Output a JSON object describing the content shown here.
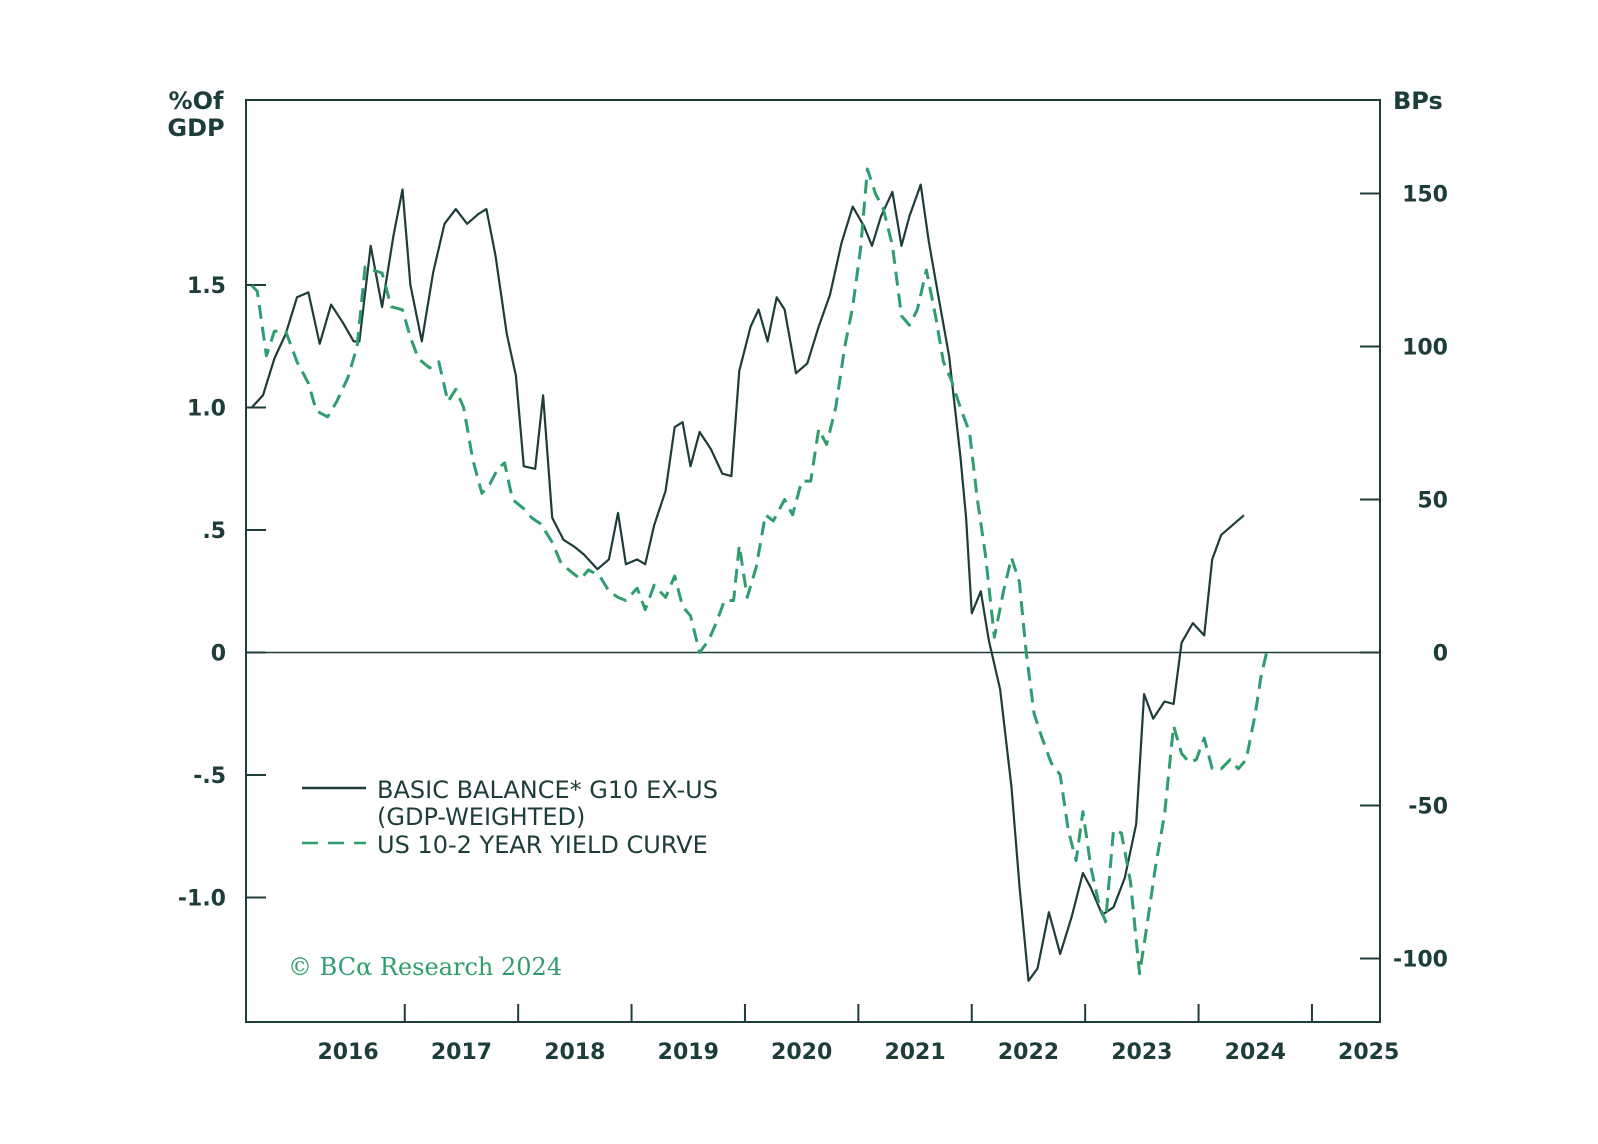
{
  "chart_data": {
    "type": "line",
    "left_axis": {
      "unit_line1": "%Of",
      "unit_line2": "GDP",
      "range": [
        -1.5,
        2.25
      ],
      "ticks": [
        {
          "value": 1.5,
          "label": "1.5"
        },
        {
          "value": 1.0,
          "label": "1.0"
        },
        {
          "value": 0.5,
          "label": ".5"
        },
        {
          "value": 0,
          "label": "0"
        },
        {
          "value": -0.5,
          "label": "-.5"
        },
        {
          "value": -1.0,
          "label": "-1.0"
        }
      ]
    },
    "right_axis": {
      "unit": "BPs",
      "range": [
        -120,
        180
      ],
      "ticks": [
        {
          "value": 150,
          "label": "150"
        },
        {
          "value": 100,
          "label": "100"
        },
        {
          "value": 50,
          "label": "50"
        },
        {
          "value": 0,
          "label": "0"
        },
        {
          "value": -50,
          "label": "-50"
        },
        {
          "value": -100,
          "label": "-100"
        }
      ]
    },
    "x_axis": {
      "range": [
        2015.6,
        2025.6
      ],
      "year_labels": [
        "2016",
        "2017",
        "2018",
        "2019",
        "2020",
        "2021",
        "2022",
        "2023",
        "2024",
        "2025"
      ]
    },
    "zero_line": true,
    "grid": false,
    "legend_placement": "bottom-left",
    "series": [
      {
        "name": "BASIC BALANCE* G10 EX-US",
        "name_line2": "(GDP-WEIGHTED)",
        "axis": "left",
        "color": "#1d3d3a",
        "style": "solid",
        "points": [
          [
            2015.65,
            1.0
          ],
          [
            2015.75,
            1.05
          ],
          [
            2015.85,
            1.2
          ],
          [
            2015.95,
            1.3
          ],
          [
            2016.05,
            1.45
          ],
          [
            2016.15,
            1.47
          ],
          [
            2016.25,
            1.26
          ],
          [
            2016.35,
            1.42
          ],
          [
            2016.45,
            1.35
          ],
          [
            2016.55,
            1.27
          ],
          [
            2016.6,
            1.27
          ],
          [
            2016.7,
            1.66
          ],
          [
            2016.8,
            1.41
          ],
          [
            2016.9,
            1.7
          ],
          [
            2016.98,
            1.89
          ],
          [
            2017.05,
            1.5
          ],
          [
            2017.15,
            1.27
          ],
          [
            2017.25,
            1.55
          ],
          [
            2017.35,
            1.75
          ],
          [
            2017.45,
            1.81
          ],
          [
            2017.55,
            1.75
          ],
          [
            2017.65,
            1.79
          ],
          [
            2017.72,
            1.81
          ],
          [
            2017.8,
            1.62
          ],
          [
            2017.9,
            1.3
          ],
          [
            2017.98,
            1.13
          ],
          [
            2018.05,
            0.76
          ],
          [
            2018.15,
            0.75
          ],
          [
            2018.22,
            1.05
          ],
          [
            2018.3,
            0.55
          ],
          [
            2018.4,
            0.46
          ],
          [
            2018.5,
            0.43
          ],
          [
            2018.58,
            0.4
          ],
          [
            2018.7,
            0.34
          ],
          [
            2018.8,
            0.38
          ],
          [
            2018.88,
            0.57
          ],
          [
            2018.95,
            0.36
          ],
          [
            2019.05,
            0.38
          ],
          [
            2019.12,
            0.36
          ],
          [
            2019.2,
            0.52
          ],
          [
            2019.3,
            0.66
          ],
          [
            2019.38,
            0.92
          ],
          [
            2019.45,
            0.94
          ],
          [
            2019.52,
            0.76
          ],
          [
            2019.6,
            0.9
          ],
          [
            2019.7,
            0.83
          ],
          [
            2019.8,
            0.73
          ],
          [
            2019.88,
            0.72
          ],
          [
            2019.95,
            1.15
          ],
          [
            2020.05,
            1.33
          ],
          [
            2020.12,
            1.4
          ],
          [
            2020.2,
            1.27
          ],
          [
            2020.28,
            1.45
          ],
          [
            2020.35,
            1.4
          ],
          [
            2020.45,
            1.14
          ],
          [
            2020.55,
            1.18
          ],
          [
            2020.65,
            1.33
          ],
          [
            2020.75,
            1.46
          ],
          [
            2020.85,
            1.67
          ],
          [
            2020.95,
            1.82
          ],
          [
            2021.05,
            1.74
          ],
          [
            2021.12,
            1.66
          ],
          [
            2021.2,
            1.78
          ],
          [
            2021.3,
            1.88
          ],
          [
            2021.38,
            1.66
          ],
          [
            2021.45,
            1.78
          ],
          [
            2021.55,
            1.91
          ],
          [
            2021.62,
            1.68
          ],
          [
            2021.7,
            1.47
          ],
          [
            2021.8,
            1.21
          ],
          [
            2021.9,
            0.8
          ],
          [
            2021.95,
            0.55
          ],
          [
            2022.0,
            0.16
          ],
          [
            2022.08,
            0.25
          ],
          [
            2022.15,
            0.05
          ],
          [
            2022.25,
            -0.15
          ],
          [
            2022.35,
            -0.55
          ],
          [
            2022.42,
            -0.95
          ],
          [
            2022.5,
            -1.34
          ],
          [
            2022.58,
            -1.29
          ],
          [
            2022.68,
            -1.06
          ],
          [
            2022.78,
            -1.23
          ],
          [
            2022.88,
            -1.08
          ],
          [
            2022.98,
            -0.9
          ],
          [
            2023.05,
            -0.96
          ],
          [
            2023.15,
            -1.07
          ],
          [
            2023.25,
            -1.04
          ],
          [
            2023.35,
            -0.92
          ],
          [
            2023.45,
            -0.7
          ],
          [
            2023.52,
            -0.17
          ],
          [
            2023.6,
            -0.27
          ],
          [
            2023.7,
            -0.2
          ],
          [
            2023.78,
            -0.21
          ],
          [
            2023.85,
            0.04
          ],
          [
            2023.95,
            0.12
          ],
          [
            2024.05,
            0.07
          ],
          [
            2024.12,
            0.38
          ],
          [
            2024.2,
            0.48
          ],
          [
            2024.3,
            0.52
          ],
          [
            2024.4,
            0.56
          ]
        ]
      },
      {
        "name": "US 10-2 YEAR YIELD CURVE",
        "axis": "right",
        "color": "#2f9d6e",
        "style": "dashed",
        "points": [
          [
            2015.65,
            120
          ],
          [
            2015.7,
            118
          ],
          [
            2015.78,
            97
          ],
          [
            2015.85,
            105
          ],
          [
            2015.95,
            105
          ],
          [
            2016.05,
            95
          ],
          [
            2016.15,
            88
          ],
          [
            2016.22,
            79
          ],
          [
            2016.32,
            77
          ],
          [
            2016.4,
            82
          ],
          [
            2016.5,
            90
          ],
          [
            2016.58,
            100
          ],
          [
            2016.65,
            126
          ],
          [
            2016.72,
            125
          ],
          [
            2016.8,
            124
          ],
          [
            2016.88,
            113
          ],
          [
            2016.98,
            112
          ],
          [
            2017.05,
            103
          ],
          [
            2017.12,
            96
          ],
          [
            2017.22,
            93
          ],
          [
            2017.3,
            95
          ],
          [
            2017.38,
            82
          ],
          [
            2017.45,
            86
          ],
          [
            2017.52,
            80
          ],
          [
            2017.6,
            63
          ],
          [
            2017.68,
            52
          ],
          [
            2017.75,
            55
          ],
          [
            2017.82,
            60
          ],
          [
            2017.88,
            62
          ],
          [
            2017.95,
            50
          ],
          [
            2018.05,
            47
          ],
          [
            2018.12,
            44
          ],
          [
            2018.2,
            42
          ],
          [
            2018.3,
            36
          ],
          [
            2018.38,
            29
          ],
          [
            2018.48,
            26
          ],
          [
            2018.55,
            24
          ],
          [
            2018.62,
            27
          ],
          [
            2018.72,
            25
          ],
          [
            2018.8,
            20
          ],
          [
            2018.88,
            18
          ],
          [
            2018.95,
            17
          ],
          [
            2019.05,
            21
          ],
          [
            2019.12,
            14
          ],
          [
            2019.2,
            22
          ],
          [
            2019.3,
            18
          ],
          [
            2019.38,
            25
          ],
          [
            2019.45,
            15
          ],
          [
            2019.52,
            12
          ],
          [
            2019.6,
            0
          ],
          [
            2019.68,
            4
          ],
          [
            2019.75,
            10
          ],
          [
            2019.82,
            17
          ],
          [
            2019.9,
            17
          ],
          [
            2019.95,
            35
          ],
          [
            2020.02,
            18
          ],
          [
            2020.1,
            28
          ],
          [
            2020.18,
            45
          ],
          [
            2020.25,
            43
          ],
          [
            2020.35,
            50
          ],
          [
            2020.42,
            45
          ],
          [
            2020.5,
            56
          ],
          [
            2020.58,
            56
          ],
          [
            2020.65,
            73
          ],
          [
            2020.72,
            68
          ],
          [
            2020.8,
            80
          ],
          [
            2020.88,
            100
          ],
          [
            2020.95,
            113
          ],
          [
            2021.02,
            132
          ],
          [
            2021.08,
            158
          ],
          [
            2021.15,
            150
          ],
          [
            2021.22,
            145
          ],
          [
            2021.3,
            133
          ],
          [
            2021.38,
            110
          ],
          [
            2021.45,
            107
          ],
          [
            2021.52,
            112
          ],
          [
            2021.6,
            125
          ],
          [
            2021.68,
            110
          ],
          [
            2021.75,
            95
          ],
          [
            2021.82,
            89
          ],
          [
            2021.9,
            80
          ],
          [
            2021.98,
            72
          ],
          [
            2022.05,
            50
          ],
          [
            2022.12,
            32
          ],
          [
            2022.2,
            5
          ],
          [
            2022.28,
            20
          ],
          [
            2022.35,
            31
          ],
          [
            2022.42,
            23
          ],
          [
            2022.48,
            0
          ],
          [
            2022.55,
            -20
          ],
          [
            2022.62,
            -28
          ],
          [
            2022.7,
            -36
          ],
          [
            2022.78,
            -40
          ],
          [
            2022.85,
            -58
          ],
          [
            2022.92,
            -68
          ],
          [
            2022.98,
            -52
          ],
          [
            2023.05,
            -70
          ],
          [
            2023.12,
            -82
          ],
          [
            2023.18,
            -88
          ],
          [
            2023.25,
            -58
          ],
          [
            2023.32,
            -59
          ],
          [
            2023.4,
            -75
          ],
          [
            2023.48,
            -105
          ],
          [
            2023.55,
            -88
          ],
          [
            2023.62,
            -70
          ],
          [
            2023.7,
            -53
          ],
          [
            2023.78,
            -24
          ],
          [
            2023.85,
            -33
          ],
          [
            2023.92,
            -36
          ],
          [
            2023.98,
            -35
          ],
          [
            2024.05,
            -28
          ],
          [
            2024.12,
            -38
          ],
          [
            2024.2,
            -38
          ],
          [
            2024.28,
            -35
          ],
          [
            2024.35,
            -38
          ],
          [
            2024.42,
            -35
          ],
          [
            2024.5,
            -20
          ],
          [
            2024.55,
            -8
          ],
          [
            2024.6,
            0
          ]
        ]
      }
    ]
  },
  "copyright": "© BCα Research 2024"
}
